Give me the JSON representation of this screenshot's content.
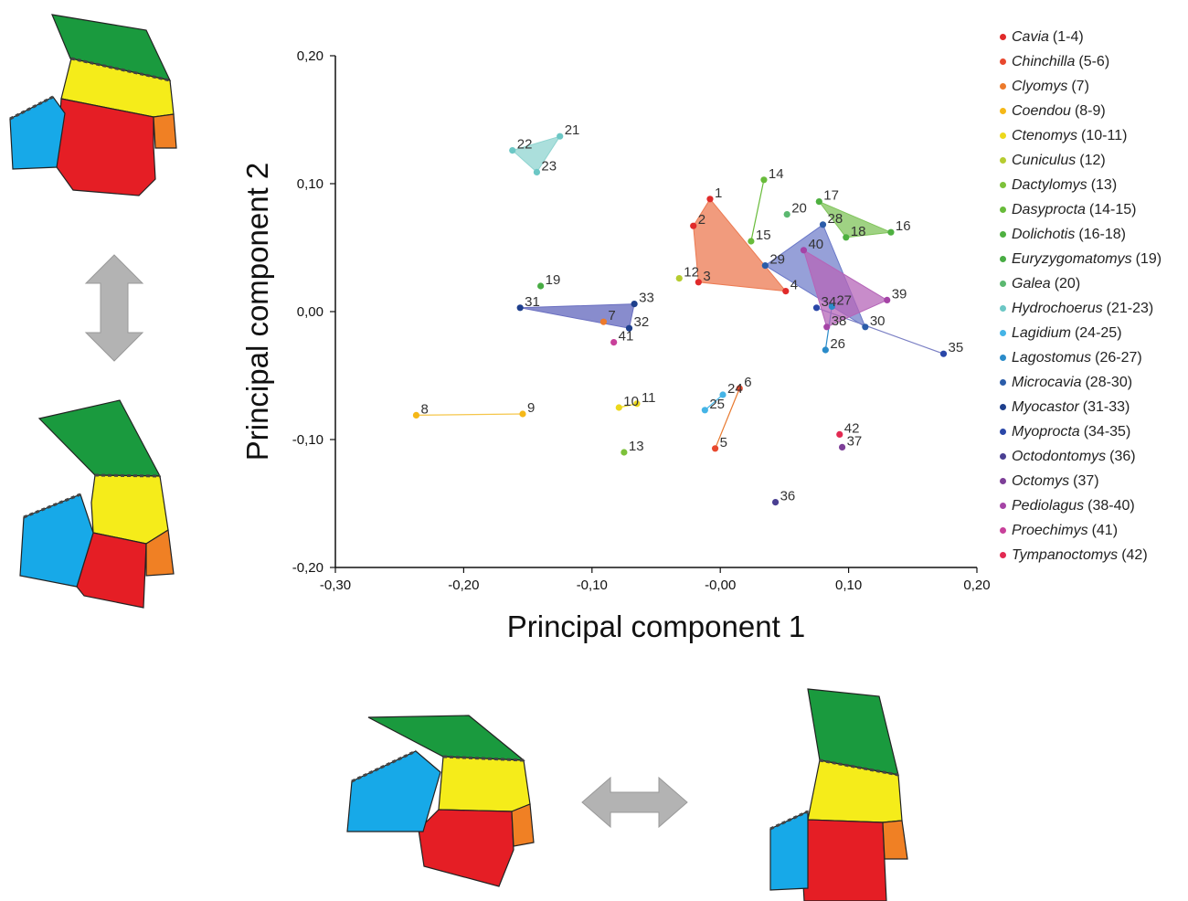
{
  "chart_data": {
    "type": "scatter",
    "xlabel": "Principal component 1",
    "ylabel": "Principal component 2",
    "xlim": [
      -0.3,
      0.2
    ],
    "ylim": [
      -0.2,
      0.2
    ],
    "xticks": [
      {
        "value": -0.3,
        "label": "-0,30"
      },
      {
        "value": -0.2,
        "label": "-0,20"
      },
      {
        "value": -0.1,
        "label": "-0,10"
      },
      {
        "value": 0.0,
        "label": "-0,00"
      },
      {
        "value": 0.1,
        "label": "0,10"
      },
      {
        "value": 0.2,
        "label": "0,20"
      }
    ],
    "yticks": [
      {
        "value": 0.2,
        "label": "0,20"
      },
      {
        "value": 0.1,
        "label": "0,10"
      },
      {
        "value": 0.0,
        "label": "0,00"
      },
      {
        "value": -0.1,
        "label": "-0,10"
      },
      {
        "value": -0.2,
        "label": "-0,20"
      }
    ],
    "grid": false,
    "legend_position": "right",
    "legend": [
      {
        "genus": "Cavia",
        "range": "(1-4)",
        "color": "#e02a2a"
      },
      {
        "genus": "Chinchilla",
        "range": "(5-6)",
        "color": "#e8482e"
      },
      {
        "genus": "Clyomys",
        "range": "(7)",
        "color": "#ec7a2b"
      },
      {
        "genus": "Coendou",
        "range": "(8-9)",
        "color": "#f5b818"
      },
      {
        "genus": "Ctenomys",
        "range": "(10-11)",
        "color": "#ecd81c"
      },
      {
        "genus": "Cuniculus",
        "range": "(12)",
        "color": "#b6cc30"
      },
      {
        "genus": "Dactylomys",
        "range": "(13)",
        "color": "#7dc13a"
      },
      {
        "genus": "Dasyprocta",
        "range": "(14-15)",
        "color": "#68bb3a"
      },
      {
        "genus": "Dolichotis",
        "range": "(16-18)",
        "color": "#4eb040"
      },
      {
        "genus": "Euryzygomatomys",
        "range": "(19)",
        "color": "#48ac44"
      },
      {
        "genus": "Galea",
        "range": "(20)",
        "color": "#5bb870"
      },
      {
        "genus": "Hydrochoerus",
        "range": "(21-23)",
        "color": "#6cc7c5"
      },
      {
        "genus": "Lagidium",
        "range": "(24-25)",
        "color": "#45b4e6"
      },
      {
        "genus": "Lagostomus",
        "range": "(26-27)",
        "color": "#2a8bc9"
      },
      {
        "genus": "Microcavia",
        "range": "(28-30)",
        "color": "#2b5ca9"
      },
      {
        "genus": "Myocastor",
        "range": "(31-33)",
        "color": "#1e3f8c"
      },
      {
        "genus": "Myoprocta",
        "range": "(34-35)",
        "color": "#2a47a8"
      },
      {
        "genus": "Octodontomys",
        "range": "(36)",
        "color": "#4a3f92"
      },
      {
        "genus": "Octomys",
        "range": "(37)",
        "color": "#7d3f98"
      },
      {
        "genus": "Pediolagus",
        "range": "(38-40)",
        "color": "#a544a6"
      },
      {
        "genus": "Proechimys",
        "range": "(41)",
        "color": "#c8409a"
      },
      {
        "genus": "Tympanoctomys",
        "range": "(42)",
        "color": "#e22a52"
      }
    ],
    "points": [
      {
        "label": "1",
        "x": -0.008,
        "y": 0.088,
        "color": "#e02a2a"
      },
      {
        "label": "2",
        "x": -0.021,
        "y": 0.067,
        "color": "#e02a2a"
      },
      {
        "label": "3",
        "x": -0.017,
        "y": 0.023,
        "color": "#e02a2a"
      },
      {
        "label": "4",
        "x": 0.051,
        "y": 0.016,
        "color": "#e02a2a"
      },
      {
        "label": "5",
        "x": -0.004,
        "y": -0.107,
        "color": "#e8482e"
      },
      {
        "label": "6",
        "x": 0.015,
        "y": -0.06,
        "color": "#e8482e"
      },
      {
        "label": "7",
        "x": -0.091,
        "y": -0.008,
        "color": "#ec7a2b"
      },
      {
        "label": "8",
        "x": -0.237,
        "y": -0.081,
        "color": "#f5b818"
      },
      {
        "label": "9",
        "x": -0.154,
        "y": -0.08,
        "color": "#f5b818"
      },
      {
        "label": "10",
        "x": -0.079,
        "y": -0.075,
        "color": "#ecd81c"
      },
      {
        "label": "11",
        "x": -0.065,
        "y": -0.072,
        "color": "#ecd81c"
      },
      {
        "label": "12",
        "x": -0.032,
        "y": 0.026,
        "color": "#b6cc30"
      },
      {
        "label": "13",
        "x": -0.075,
        "y": -0.11,
        "color": "#7dc13a"
      },
      {
        "label": "14",
        "x": 0.034,
        "y": 0.103,
        "color": "#68bb3a"
      },
      {
        "label": "15",
        "x": 0.024,
        "y": 0.055,
        "color": "#68bb3a"
      },
      {
        "label": "16",
        "x": 0.133,
        "y": 0.062,
        "color": "#4eb040"
      },
      {
        "label": "17",
        "x": 0.077,
        "y": 0.086,
        "color": "#4eb040"
      },
      {
        "label": "18",
        "x": 0.098,
        "y": 0.058,
        "color": "#4eb040"
      },
      {
        "label": "19",
        "x": -0.14,
        "y": 0.02,
        "color": "#48ac44"
      },
      {
        "label": "20",
        "x": 0.052,
        "y": 0.076,
        "color": "#5bb870"
      },
      {
        "label": "21",
        "x": -0.125,
        "y": 0.137,
        "color": "#6cc7c5"
      },
      {
        "label": "22",
        "x": -0.162,
        "y": 0.126,
        "color": "#6cc7c5"
      },
      {
        "label": "23",
        "x": -0.143,
        "y": 0.109,
        "color": "#6cc7c5"
      },
      {
        "label": "24",
        "x": 0.002,
        "y": -0.065,
        "color": "#45b4e6"
      },
      {
        "label": "25",
        "x": -0.012,
        "y": -0.077,
        "color": "#45b4e6"
      },
      {
        "label": "26",
        "x": 0.082,
        "y": -0.03,
        "color": "#2a8bc9"
      },
      {
        "label": "27",
        "x": 0.087,
        "y": 0.004,
        "color": "#2a8bc9"
      },
      {
        "label": "28",
        "x": 0.08,
        "y": 0.068,
        "color": "#2b5ca9"
      },
      {
        "label": "29",
        "x": 0.035,
        "y": 0.036,
        "color": "#2b5ca9"
      },
      {
        "label": "30",
        "x": 0.113,
        "y": -0.012,
        "color": "#2b5ca9"
      },
      {
        "label": "31",
        "x": -0.156,
        "y": 0.003,
        "color": "#1e3f8c"
      },
      {
        "label": "32",
        "x": -0.071,
        "y": -0.013,
        "color": "#1e3f8c"
      },
      {
        "label": "33",
        "x": -0.067,
        "y": 0.006,
        "color": "#1e3f8c"
      },
      {
        "label": "34",
        "x": 0.075,
        "y": 0.003,
        "color": "#2a47a8"
      },
      {
        "label": "35",
        "x": 0.174,
        "y": -0.033,
        "color": "#2a47a8"
      },
      {
        "label": "36",
        "x": 0.043,
        "y": -0.149,
        "color": "#4a3f92"
      },
      {
        "label": "37",
        "x": 0.095,
        "y": -0.106,
        "color": "#7d3f98"
      },
      {
        "label": "38",
        "x": 0.083,
        "y": -0.012,
        "color": "#a544a6"
      },
      {
        "label": "39",
        "x": 0.13,
        "y": 0.009,
        "color": "#a544a6"
      },
      {
        "label": "40",
        "x": 0.065,
        "y": 0.048,
        "color": "#a544a6"
      },
      {
        "label": "41",
        "x": -0.083,
        "y": -0.024,
        "color": "#c8409a"
      },
      {
        "label": "42",
        "x": 0.093,
        "y": -0.096,
        "color": "#e22a52"
      }
    ],
    "hulls": [
      {
        "genus": "Cavia",
        "color": "#ec7a52",
        "opacity": 0.75,
        "points": [
          "1",
          "2",
          "3",
          "4"
        ]
      },
      {
        "genus": "Chinchilla",
        "color": "#e8792e",
        "opacity": 1,
        "points": [
          "5",
          "6"
        ]
      },
      {
        "genus": "Coendou",
        "color": "#f5c64a",
        "opacity": 1,
        "points": [
          "8",
          "9"
        ]
      },
      {
        "genus": "Ctenomys",
        "color": "#ecd81c",
        "opacity": 1,
        "points": [
          "10",
          "11"
        ]
      },
      {
        "genus": "Dasyprocta",
        "color": "#68bb3a",
        "opacity": 1,
        "points": [
          "14",
          "15"
        ]
      },
      {
        "genus": "Dolichotis",
        "color": "#7fc35a",
        "opacity": 0.75,
        "points": [
          "17",
          "16",
          "18"
        ]
      },
      {
        "genus": "Hydrochoerus",
        "color": "#8fd4d0",
        "opacity": 0.75,
        "points": [
          "21",
          "22",
          "23"
        ]
      },
      {
        "genus": "Lagidium",
        "color": "#45b4e6",
        "opacity": 1,
        "points": [
          "24",
          "25"
        ]
      },
      {
        "genus": "Lagostomus",
        "color": "#2a8bc9",
        "opacity": 1,
        "points": [
          "26",
          "27"
        ]
      },
      {
        "genus": "Microcavia",
        "color": "#6a78c8",
        "opacity": 0.7,
        "points": [
          "28",
          "29",
          "30"
        ]
      },
      {
        "genus": "Myocastor",
        "color": "#6a6fc0",
        "opacity": 0.8,
        "points": [
          "31",
          "33",
          "32"
        ]
      },
      {
        "genus": "Myoprocta",
        "color": "#7a7fc4",
        "opacity": 1,
        "points": [
          "34",
          "35"
        ]
      },
      {
        "genus": "Pediolagus",
        "color": "#b565b8",
        "opacity": 0.75,
        "points": [
          "40",
          "39",
          "38"
        ]
      }
    ]
  }
}
